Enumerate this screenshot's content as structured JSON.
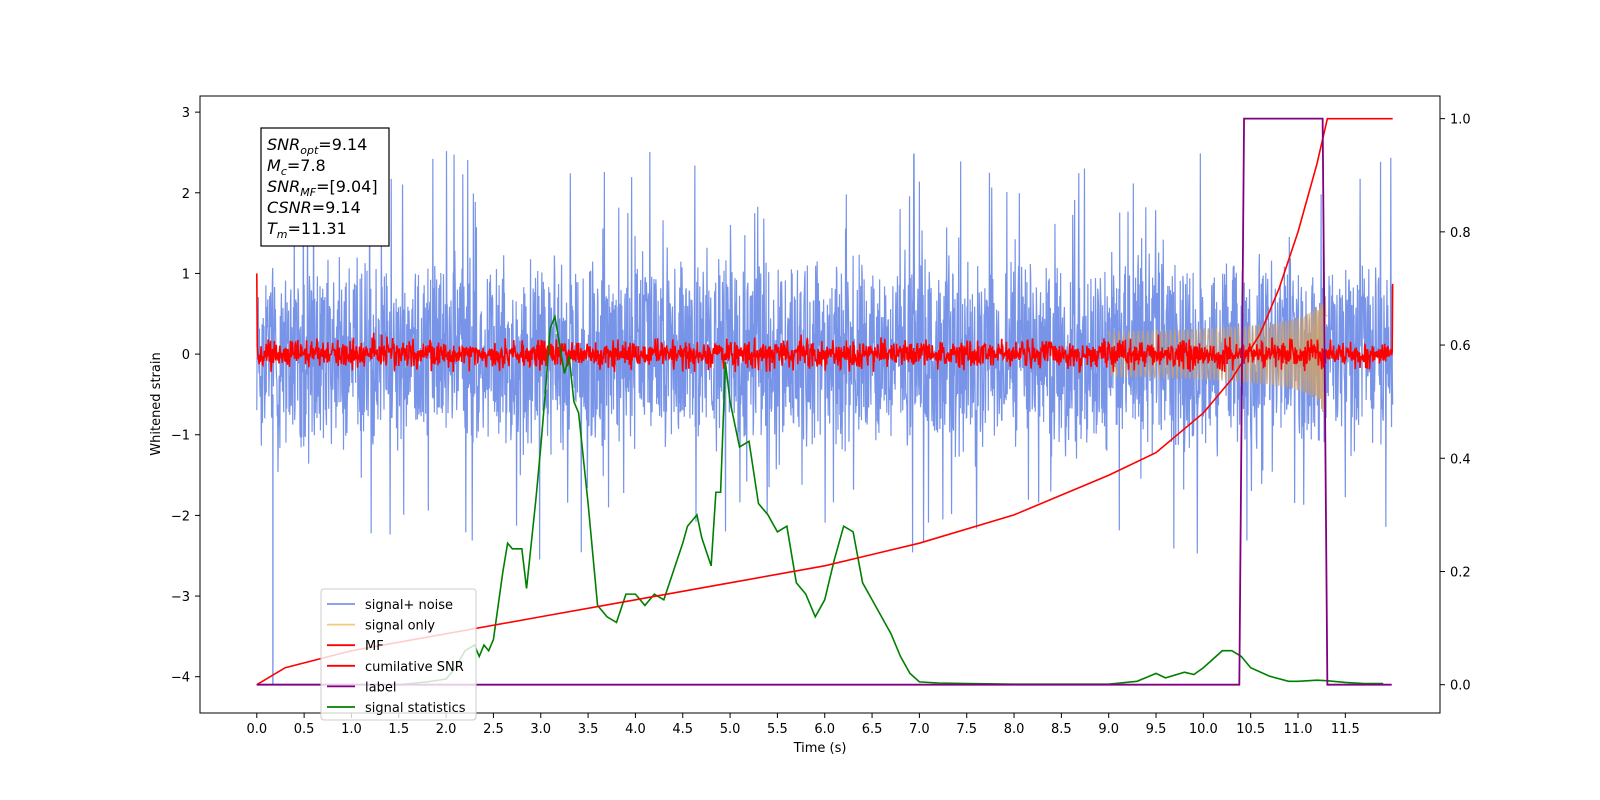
{
  "chart_data": {
    "type": "line",
    "title": "",
    "xlabel": "Time (s)",
    "ylabel": "Whitened strain",
    "ylabel_right": "",
    "xlim": [
      -0.6,
      12.5
    ],
    "ylim": [
      -4.45,
      3.2
    ],
    "ylim_right": [
      -0.05,
      1.04
    ],
    "grid": false,
    "legend_location": "lower-left",
    "x_ticks": [
      0.0,
      0.5,
      1.0,
      1.5,
      2.0,
      2.5,
      3.0,
      3.5,
      4.0,
      4.5,
      5.0,
      5.5,
      6.0,
      6.5,
      7.0,
      7.5,
      8.0,
      8.5,
      9.0,
      9.5,
      10.0,
      10.5,
      11.0,
      11.5
    ],
    "x_tick_labels": [
      "0.0",
      "0.5",
      "1.0",
      "1.5",
      "2.0",
      "2.5",
      "3.0",
      "3.5",
      "4.0",
      "4.5",
      "5.0",
      "5.5",
      "6.0",
      "6.5",
      "7.0",
      "7.5",
      "8.0",
      "8.5",
      "9.0",
      "9.5",
      "10.0",
      "10.5",
      "11.0",
      "11.5"
    ],
    "y_ticks": [
      3,
      2,
      1,
      0,
      -1,
      -2,
      -3,
      -4
    ],
    "y_tick_labels": [
      "3",
      "2",
      "1",
      "0",
      "−1",
      "−2",
      "−3",
      "−4"
    ],
    "y_right_ticks": [
      1.0,
      0.8,
      0.6,
      0.4,
      0.2,
      0.0
    ],
    "y_right_tick_labels": [
      "1.0",
      "0.8",
      "0.6",
      "0.4",
      "0.2",
      "0.0"
    ],
    "annotation": [
      {
        "sym": "SNR",
        "sub": "opt",
        "value": "=9.14"
      },
      {
        "sym": "M",
        "sub": "c",
        "value": "=7.8"
      },
      {
        "sym": "SNR",
        "sub": "MF",
        "value": "=[9.04]"
      },
      {
        "sym": "CSNR",
        "sub": "",
        "value": "=9.14"
      },
      {
        "sym": "T",
        "sub": "m",
        "value": "=11.31"
      }
    ],
    "series": [
      {
        "name": "signal+ noise",
        "color": "#7894e8",
        "axis": "left",
        "kind": "noise",
        "x_range": [
          0.0,
          12.0
        ],
        "y_range": [
          -3.4,
          2.85
        ],
        "envelope": 1.3
      },
      {
        "name": "signal only",
        "color": "#f5c97a",
        "axis": "left",
        "kind": "chirp",
        "x_range": [
          9.0,
          11.31
        ],
        "amplitude_max": 1.0
      },
      {
        "name": "MF",
        "color": "#ff0000",
        "axis": "left",
        "kind": "noise",
        "x_range": [
          0.0,
          12.0
        ],
        "envelope": 0.12,
        "start_value": 1.0,
        "end_value": 0.87
      },
      {
        "name": "cumilative SNR",
        "color": "#ff0000",
        "axis": "right",
        "x": [
          0.0,
          0.3,
          1.0,
          2.0,
          3.0,
          4.0,
          5.0,
          6.0,
          6.5,
          7.0,
          8.0,
          9.0,
          9.5,
          10.0,
          10.3,
          10.6,
          10.8,
          11.0,
          11.1,
          11.2,
          11.31,
          12.0
        ],
        "y": [
          0.0,
          0.03,
          0.06,
          0.09,
          0.12,
          0.15,
          0.18,
          0.21,
          0.23,
          0.25,
          0.3,
          0.37,
          0.41,
          0.48,
          0.54,
          0.62,
          0.7,
          0.8,
          0.86,
          0.92,
          1.0,
          1.0
        ]
      },
      {
        "name": "label",
        "color": "#800080",
        "axis": "right",
        "x": [
          0.0,
          10.38,
          10.43,
          11.26,
          11.31,
          11.99
        ],
        "y": [
          0.0,
          0.0,
          1.0,
          1.0,
          0.0,
          0.0
        ]
      },
      {
        "name": "signal statistics",
        "color": "#008000",
        "axis": "right",
        "x": [
          0.0,
          1.5,
          1.8,
          2.0,
          2.1,
          2.2,
          2.3,
          2.35,
          2.4,
          2.45,
          2.5,
          2.6,
          2.65,
          2.7,
          2.8,
          2.85,
          2.9,
          2.95,
          3.0,
          3.05,
          3.1,
          3.15,
          3.2,
          3.25,
          3.3,
          3.35,
          3.4,
          3.5,
          3.6,
          3.7,
          3.8,
          3.9,
          4.0,
          4.1,
          4.2,
          4.3,
          4.4,
          4.5,
          4.55,
          4.65,
          4.7,
          4.8,
          4.85,
          4.9,
          4.95,
          5.0,
          5.1,
          5.2,
          5.3,
          5.4,
          5.5,
          5.6,
          5.7,
          5.8,
          5.9,
          6.0,
          6.1,
          6.2,
          6.3,
          6.4,
          6.5,
          6.6,
          6.7,
          6.8,
          6.9,
          7.0,
          7.2,
          7.5,
          8.0,
          8.5,
          9.0,
          9.3,
          9.5,
          9.6,
          9.8,
          9.9,
          10.0,
          10.1,
          10.2,
          10.3,
          10.4,
          10.5,
          10.7,
          10.9,
          11.0,
          11.2,
          11.3,
          11.5,
          11.7,
          11.9
        ],
        "y": [
          0.0,
          0.0,
          0.005,
          0.01,
          0.03,
          0.06,
          0.07,
          0.05,
          0.07,
          0.06,
          0.08,
          0.2,
          0.25,
          0.24,
          0.24,
          0.17,
          0.25,
          0.33,
          0.42,
          0.52,
          0.63,
          0.65,
          0.6,
          0.55,
          0.58,
          0.5,
          0.48,
          0.32,
          0.14,
          0.12,
          0.11,
          0.16,
          0.16,
          0.14,
          0.16,
          0.15,
          0.2,
          0.25,
          0.28,
          0.3,
          0.26,
          0.21,
          0.34,
          0.34,
          0.57,
          0.5,
          0.42,
          0.43,
          0.32,
          0.3,
          0.27,
          0.28,
          0.18,
          0.16,
          0.12,
          0.15,
          0.22,
          0.28,
          0.27,
          0.18,
          0.15,
          0.12,
          0.09,
          0.05,
          0.02,
          0.005,
          0.003,
          0.002,
          0.001,
          0.001,
          0.001,
          0.006,
          0.02,
          0.012,
          0.022,
          0.018,
          0.03,
          0.045,
          0.06,
          0.06,
          0.05,
          0.03,
          0.015,
          0.006,
          0.006,
          0.008,
          0.007,
          0.004,
          0.002,
          0.002
        ]
      }
    ]
  }
}
